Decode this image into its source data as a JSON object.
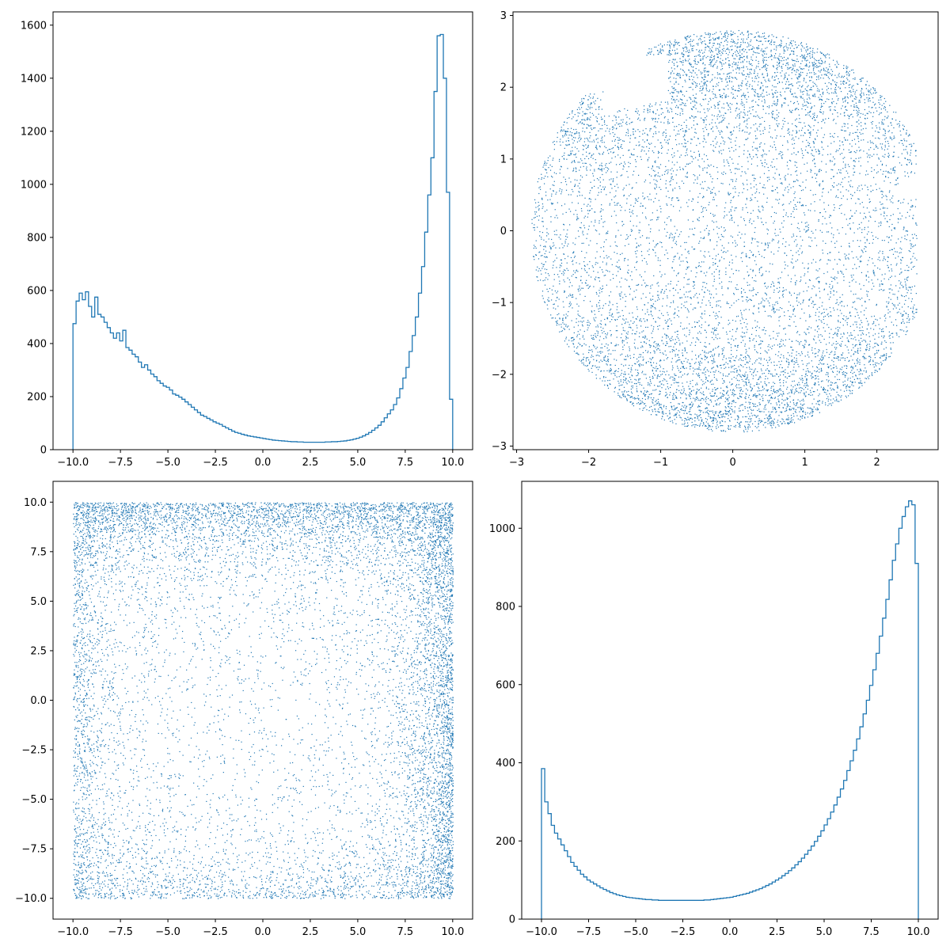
{
  "colors": {
    "series": "#1f77b4",
    "background": "#ffffff",
    "axes": "#000000"
  },
  "chart_data": [
    {
      "type": "histogram",
      "xlim": [
        -11.05,
        11.05
      ],
      "ylim": [
        0,
        1650
      ],
      "xticks": [
        "-10.0",
        "-7.5",
        "-5.0",
        "-2.5",
        "0.0",
        "2.5",
        "5.0",
        "7.5",
        "10.0"
      ],
      "xtick_values": [
        -10,
        -7.5,
        -5,
        -2.5,
        0,
        2.5,
        5,
        7.5,
        10
      ],
      "yticks": [
        "0",
        "200",
        "400",
        "600",
        "800",
        "1000",
        "1200",
        "1400",
        "1600"
      ],
      "ytick_values": [
        0,
        200,
        400,
        600,
        800,
        1000,
        1200,
        1400,
        1600
      ],
      "bin_edges_range": [
        -10,
        10
      ],
      "counts": [
        475,
        560,
        590,
        565,
        595,
        540,
        500,
        575,
        510,
        500,
        480,
        460,
        440,
        420,
        440,
        410,
        450,
        385,
        375,
        360,
        350,
        330,
        310,
        320,
        300,
        285,
        275,
        260,
        250,
        240,
        235,
        225,
        210,
        205,
        198,
        190,
        180,
        170,
        160,
        150,
        140,
        130,
        125,
        118,
        112,
        105,
        100,
        95,
        88,
        82,
        76,
        70,
        65,
        62,
        58,
        55,
        52,
        50,
        48,
        46,
        44,
        42,
        40,
        38,
        36,
        35,
        34,
        33,
        32,
        31,
        30,
        30,
        29,
        29,
        28,
        28,
        28,
        28,
        28,
        28,
        28,
        29,
        29,
        30,
        30,
        31,
        32,
        33,
        35,
        37,
        40,
        43,
        47,
        52,
        58,
        65,
        73,
        82,
        92,
        105,
        120,
        135,
        150,
        170,
        195,
        230,
        270,
        310,
        370,
        430,
        500,
        590,
        690,
        820,
        960,
        1100,
        1350,
        1560,
        1565,
        1400,
        970,
        190
      ]
    },
    {
      "type": "scatter",
      "xlim": [
        -3.05,
        2.85
      ],
      "ylim": [
        -3.05,
        3.05
      ],
      "xticks": [
        "-3",
        "-2",
        "-1",
        "0",
        "1",
        "2"
      ],
      "xtick_values": [
        -3,
        -2,
        -1,
        0,
        1,
        2
      ],
      "yticks": [
        "-3",
        "-2",
        "-1",
        "0",
        "1",
        "2",
        "3"
      ],
      "ytick_values": [
        -3,
        -2,
        -1,
        0,
        1,
        2,
        3
      ],
      "points_description": "dense point cloud filling an irregular disk of radius about 2.8 centred near (0,0); denser toward the top (y about 2.5) and bottom (y about -2.5) edges, sparser centre, with a notch near (-1.2, 2.0) and small bite near (2.3, 0.6)",
      "marker_size": 1
    },
    {
      "type": "scatter",
      "xlim": [
        -11.05,
        11.05
      ],
      "ylim": [
        -11.05,
        11.05
      ],
      "xticks": [
        "-10.0",
        "-7.5",
        "-5.0",
        "-2.5",
        "0.0",
        "2.5",
        "5.0",
        "7.5",
        "10.0"
      ],
      "xtick_values": [
        -10,
        -7.5,
        -5,
        -2.5,
        0,
        2.5,
        5,
        7.5,
        10
      ],
      "yticks": [
        "-10.0",
        "-7.5",
        "-5.0",
        "-2.5",
        "0.0",
        "2.5",
        "5.0",
        "7.5",
        "10.0"
      ],
      "ytick_values": [
        -10,
        -7.5,
        -5,
        -2.5,
        0,
        2.5,
        5,
        7.5,
        10
      ],
      "points_description": "points filling the square [-10,10]x[-10,10], densest along the top edge (y near 10) and right edge (x near 10), moderately dense along the left and bottom edges, sparse in the centre",
      "marker_size": 1
    },
    {
      "type": "histogram",
      "xlim": [
        -11.05,
        11.05
      ],
      "ylim": [
        0,
        1120
      ],
      "xticks": [
        "-10.0",
        "-7.5",
        "-5.0",
        "-2.5",
        "0.0",
        "2.5",
        "5.0",
        "7.5",
        "10.0"
      ],
      "xtick_values": [
        -10,
        -7.5,
        -5,
        -2.5,
        0,
        2.5,
        5,
        7.5,
        10
      ],
      "yticks": [
        "0",
        "200",
        "400",
        "600",
        "800",
        "1000"
      ],
      "ytick_values": [
        0,
        200,
        400,
        600,
        800,
        1000
      ],
      "bin_edges_range": [
        -10,
        10
      ],
      "counts": [
        385,
        300,
        270,
        240,
        220,
        205,
        190,
        175,
        160,
        145,
        135,
        125,
        115,
        108,
        100,
        95,
        90,
        85,
        80,
        76,
        72,
        68,
        65,
        62,
        60,
        58,
        56,
        55,
        54,
        53,
        52,
        51,
        50,
        50,
        49,
        49,
        48,
        48,
        48,
        48,
        48,
        48,
        48,
        48,
        48,
        48,
        48,
        48,
        48,
        48,
        49,
        49,
        50,
        51,
        52,
        53,
        54,
        55,
        56,
        58,
        60,
        62,
        64,
        66,
        69,
        72,
        75,
        78,
        82,
        86,
        90,
        95,
        100,
        105,
        111,
        117,
        124,
        131,
        139,
        147,
        156,
        166,
        176,
        187,
        199,
        212,
        226,
        241,
        257,
        274,
        292,
        312,
        333,
        355,
        380,
        405,
        432,
        461,
        492,
        525,
        560,
        598,
        638,
        680,
        724,
        770,
        818,
        868,
        918,
        960,
        1000,
        1030,
        1055,
        1070,
        1060,
        910
      ]
    }
  ]
}
